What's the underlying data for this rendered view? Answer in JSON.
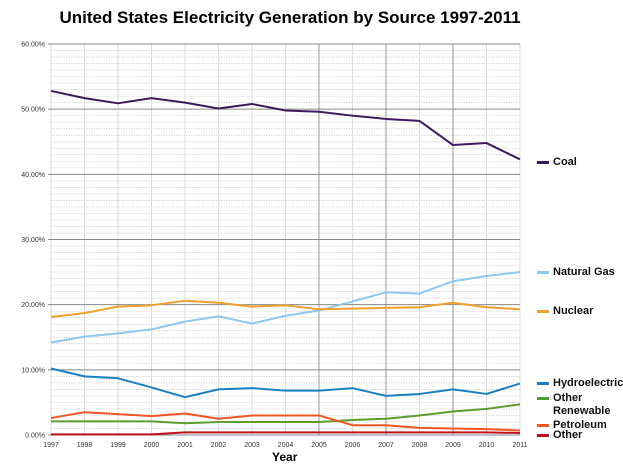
{
  "chart_data": {
    "type": "line",
    "title": "United States Electricity Generation by Source 1997-2011",
    "xlabel": "Year",
    "ylabel": "",
    "x": [
      1997,
      1998,
      1999,
      2000,
      2001,
      2002,
      2003,
      2004,
      2005,
      2006,
      2007,
      2008,
      2009,
      2010,
      2011
    ],
    "ylim": [
      0,
      60
    ],
    "yticks": [
      "0.00%",
      "10.00%",
      "20.00%",
      "30.00%",
      "40.00%",
      "50.00%",
      "60.00%"
    ],
    "grid": true,
    "legend": "right",
    "series": [
      {
        "name": "Coal",
        "color": "#3d1a5c",
        "values": [
          52.8,
          51.7,
          50.9,
          51.7,
          51.0,
          50.1,
          50.8,
          49.8,
          49.6,
          49.0,
          48.5,
          48.2,
          44.5,
          44.8,
          42.3
        ]
      },
      {
        "name": "Natural Gas",
        "color": "#8cc8f0",
        "values": [
          14.2,
          15.1,
          15.6,
          16.2,
          17.4,
          18.2,
          17.1,
          18.3,
          19.1,
          20.5,
          21.9,
          21.7,
          23.6,
          24.4,
          25.0
        ]
      },
      {
        "name": "Nuclear",
        "color": "#f0a030",
        "values": [
          18.1,
          18.7,
          19.7,
          19.9,
          20.6,
          20.3,
          19.7,
          19.9,
          19.3,
          19.4,
          19.5,
          19.6,
          20.3,
          19.6,
          19.3
        ]
      },
      {
        "name": "Hydroelectric",
        "color": "#1a80c4",
        "values": [
          10.2,
          9.0,
          8.7,
          7.3,
          5.8,
          7.0,
          7.2,
          6.8,
          6.8,
          7.2,
          6.0,
          6.3,
          7.0,
          6.3,
          7.9
        ]
      },
      {
        "name": "Other Renewable",
        "color": "#5c9c2c",
        "values": [
          2.1,
          2.1,
          2.1,
          2.1,
          1.8,
          2.0,
          2.0,
          2.0,
          2.0,
          2.3,
          2.5,
          3.0,
          3.6,
          4.0,
          4.7
        ]
      },
      {
        "name": "Petroleum",
        "color": "#f05526",
        "values": [
          2.6,
          3.5,
          3.2,
          2.9,
          3.3,
          2.5,
          3.0,
          3.0,
          3.0,
          1.5,
          1.5,
          1.1,
          1.0,
          0.9,
          0.7
        ]
      },
      {
        "name": "Other",
        "color": "#c0101c",
        "values": [
          0.1,
          0.1,
          0.1,
          0.1,
          0.4,
          0.4,
          0.4,
          0.4,
          0.4,
          0.4,
          0.4,
          0.4,
          0.4,
          0.4,
          0.3
        ]
      }
    ]
  }
}
